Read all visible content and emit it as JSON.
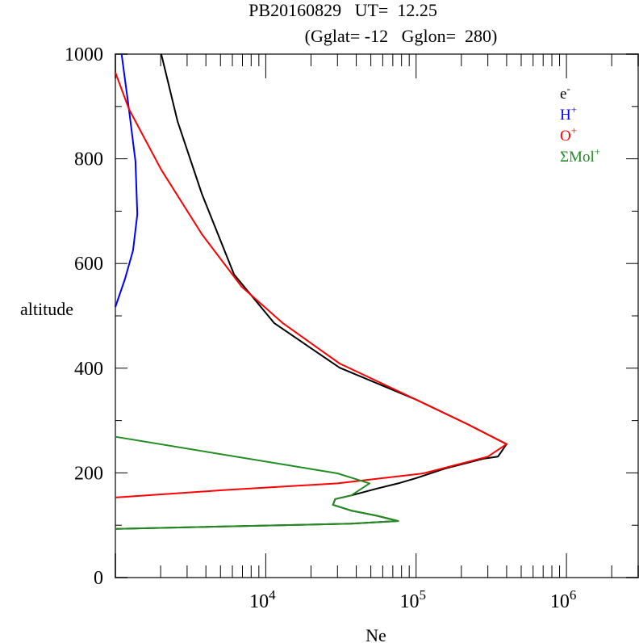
{
  "chart_data": {
    "type": "line",
    "title": "PB20160829   UT=  12.25",
    "subtitle": "(Gglat= -12   Gglon=  280)",
    "xlabel": "Ne",
    "ylabel": "altitude",
    "xscale": "log",
    "xlim": [
      1000,
      3000000
    ],
    "ylim": [
      0,
      1000
    ],
    "xticklabels": [
      {
        "base": "10",
        "exp": "4",
        "value": 10000
      },
      {
        "base": "10",
        "exp": "5",
        "value": 100000
      },
      {
        "base": "10",
        "exp": "6",
        "value": 1000000
      }
    ],
    "yticklabels": [
      "0",
      "200",
      "400",
      "600",
      "800",
      "1000"
    ],
    "legend_position": "top-right",
    "series": [
      {
        "name": "e",
        "sup": "-",
        "color": "#000000",
        "points": [
          [
            2020,
            1000
          ],
          [
            2590,
            872
          ],
          [
            3760,
            733
          ],
          [
            6160,
            579
          ],
          [
            11400,
            486
          ],
          [
            31000,
            401
          ],
          [
            100000,
            340
          ],
          [
            220000,
            293
          ],
          [
            400000,
            255
          ],
          [
            350000,
            231
          ],
          [
            280000,
            227
          ],
          [
            155000,
            208
          ],
          [
            100000,
            190
          ],
          [
            76000,
            180
          ],
          [
            55000,
            170
          ],
          [
            37000,
            157
          ],
          [
            29000,
            150
          ],
          [
            28000,
            139
          ],
          [
            37000,
            128
          ],
          [
            55000,
            118
          ],
          [
            76000,
            108
          ],
          [
            37000,
            103
          ],
          [
            1000,
            93
          ]
        ]
      },
      {
        "name": "H",
        "sup": "+",
        "color": "#0000ff",
        "points": [
          [
            1100,
            1000
          ],
          [
            1230,
            895
          ],
          [
            1360,
            795
          ],
          [
            1400,
            694
          ],
          [
            1310,
            625
          ],
          [
            1160,
            571
          ],
          [
            1000,
            517
          ]
        ]
      },
      {
        "name": "O",
        "sup": "+",
        "color": "#ff0000",
        "points": [
          [
            1000,
            965
          ],
          [
            1230,
            895
          ],
          [
            2020,
            779
          ],
          [
            3760,
            656
          ],
          [
            6900,
            556
          ],
          [
            13000,
            486
          ],
          [
            31000,
            409
          ],
          [
            100000,
            340
          ],
          [
            220000,
            293
          ],
          [
            400000,
            255
          ],
          [
            300000,
            231
          ],
          [
            112000,
            199
          ],
          [
            30000,
            180
          ],
          [
            5200,
            167
          ],
          [
            1000,
            153
          ]
        ]
      },
      {
        "name": "ΣMol",
        "sup": "+",
        "color": "#228b22",
        "points": [
          [
            1000,
            269
          ],
          [
            30000,
            199
          ],
          [
            49000,
            180
          ],
          [
            37000,
            157
          ],
          [
            29000,
            150
          ],
          [
            28000,
            139
          ],
          [
            37000,
            128
          ],
          [
            55000,
            118
          ],
          [
            76000,
            108
          ],
          [
            37000,
            103
          ],
          [
            1000,
            93
          ]
        ]
      }
    ]
  }
}
